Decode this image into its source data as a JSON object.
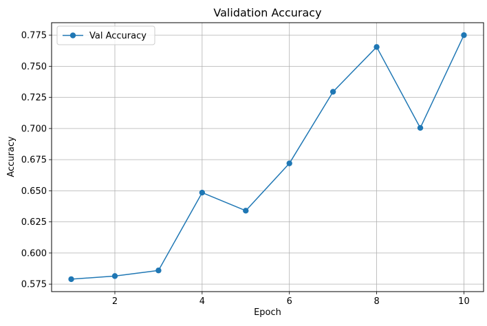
{
  "chart_data": {
    "type": "line",
    "title": "Validation Accuracy",
    "xlabel": "Epoch",
    "ylabel": "Accuracy",
    "xlim": [
      0.55,
      10.45
    ],
    "ylim": [
      0.569,
      0.785
    ],
    "x_ticks": [
      2,
      4,
      6,
      8,
      10
    ],
    "y_ticks": [
      0.575,
      0.6,
      0.625,
      0.65,
      0.675,
      0.7,
      0.725,
      0.75,
      0.775
    ],
    "y_tick_labels": [
      "0.575",
      "0.600",
      "0.625",
      "0.650",
      "0.675",
      "0.700",
      "0.725",
      "0.750",
      "0.775"
    ],
    "grid": true,
    "legend_position": "upper-left",
    "series": [
      {
        "name": "Val Accuracy",
        "color": "#1f77b4",
        "marker": "circle",
        "x": [
          1,
          2,
          3,
          4,
          5,
          6,
          7,
          8,
          9,
          10
        ],
        "y": [
          0.579,
          0.5815,
          0.586,
          0.6485,
          0.634,
          0.672,
          0.7295,
          0.7655,
          0.7005,
          0.775
        ]
      }
    ]
  }
}
